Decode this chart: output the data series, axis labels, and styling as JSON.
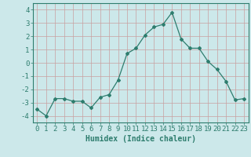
{
  "x": [
    0,
    1,
    2,
    3,
    4,
    5,
    6,
    7,
    8,
    9,
    10,
    11,
    12,
    13,
    14,
    15,
    16,
    17,
    18,
    19,
    20,
    21,
    22,
    23
  ],
  "y": [
    -3.5,
    -4.0,
    -2.7,
    -2.7,
    -2.9,
    -2.9,
    -3.4,
    -2.6,
    -2.4,
    -1.3,
    0.7,
    1.1,
    2.1,
    2.7,
    2.9,
    3.8,
    1.8,
    1.1,
    1.1,
    0.1,
    -0.5,
    -1.4,
    -2.8,
    -2.7
  ],
  "line_color": "#2e7d6e",
  "bg_color": "#cce8ea",
  "grid_color": "#b0d4d8",
  "xlabel": "Humidex (Indice chaleur)",
  "ylim": [
    -4.5,
    4.5
  ],
  "xlim": [
    -0.5,
    23.5
  ],
  "yticks": [
    -4,
    -3,
    -2,
    -1,
    0,
    1,
    2,
    3,
    4
  ],
  "xticks": [
    0,
    1,
    2,
    3,
    4,
    5,
    6,
    7,
    8,
    9,
    10,
    11,
    12,
    13,
    14,
    15,
    16,
    17,
    18,
    19,
    20,
    21,
    22,
    23
  ],
  "tick_color": "#2e7d6e",
  "label_fontsize": 7,
  "tick_fontsize": 6.5
}
